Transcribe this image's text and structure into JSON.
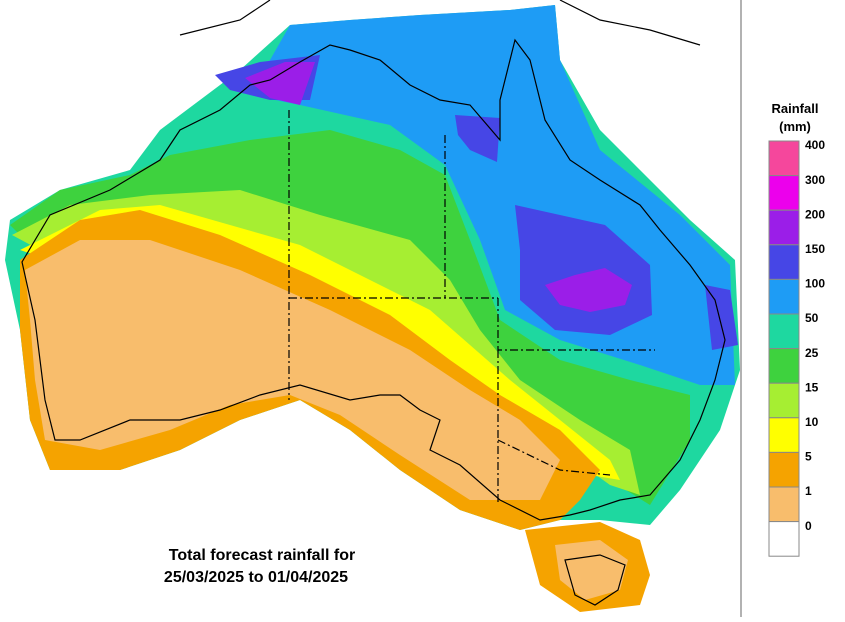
{
  "legend": {
    "title": "Rainfall",
    "unit": "(mm)",
    "items": [
      {
        "label": "400",
        "color": "#f5479c"
      },
      {
        "label": "300",
        "color": "#ec00ec"
      },
      {
        "label": "200",
        "color": "#9b1ee8"
      },
      {
        "label": "150",
        "color": "#4646e6"
      },
      {
        "label": "100",
        "color": "#1e9cf5"
      },
      {
        "label": "50",
        "color": "#1ed8a0"
      },
      {
        "label": "25",
        "color": "#3ed23e"
      },
      {
        "label": "15",
        "color": "#a6ee32"
      },
      {
        "label": "10",
        "color": "#ffff00"
      },
      {
        "label": "5",
        "color": "#f5a300"
      },
      {
        "label": "1",
        "color": "#f8bd6c"
      },
      {
        "label": "0",
        "color": "#ffffff"
      }
    ]
  },
  "caption": {
    "line1": "Total forecast rainfall for",
    "line2": "25/03/2025 to 01/04/2025"
  }
}
